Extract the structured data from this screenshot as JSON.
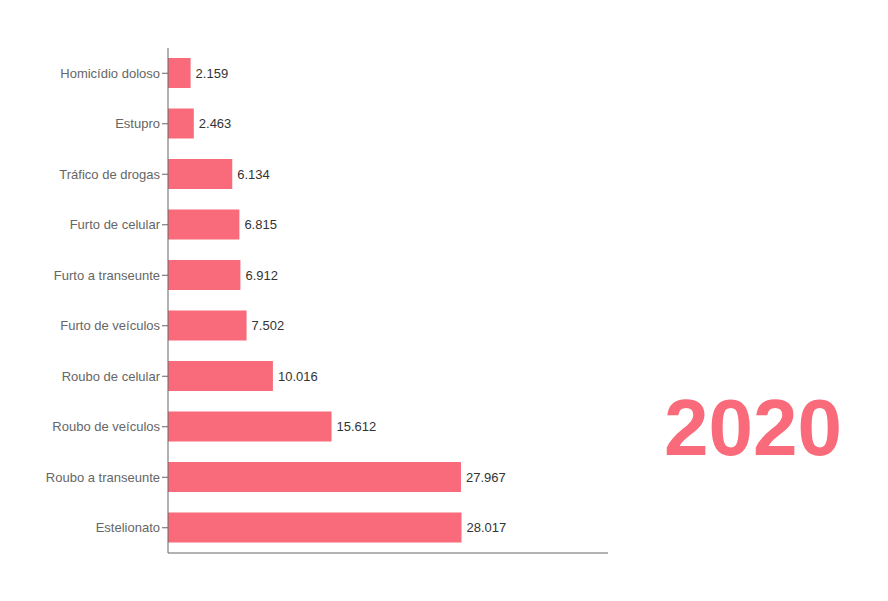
{
  "chart_data": {
    "type": "bar",
    "orientation": "horizontal",
    "categories": [
      "Homicídio doloso",
      "Estupro",
      "Tráfico de drogas",
      "Furto de celular",
      "Furto a transeunte",
      "Furto de veículos",
      "Roubo de celular",
      "Roubo de veículos",
      "Roubo a transeunte",
      "Estelionato"
    ],
    "values": [
      2159,
      2463,
      6134,
      6815,
      6912,
      7502,
      10016,
      15612,
      27967,
      28017
    ],
    "value_labels": [
      "2.159",
      "2.463",
      "6.134",
      "6.815",
      "6.912",
      "7.502",
      "10.016",
      "15.612",
      "27.967",
      "28.017"
    ],
    "data_labels": true,
    "color": "#F96B7A",
    "xlim": [
      0,
      42000
    ],
    "tick_labels": "y",
    "grid": false,
    "annotations": [
      "2020"
    ]
  }
}
